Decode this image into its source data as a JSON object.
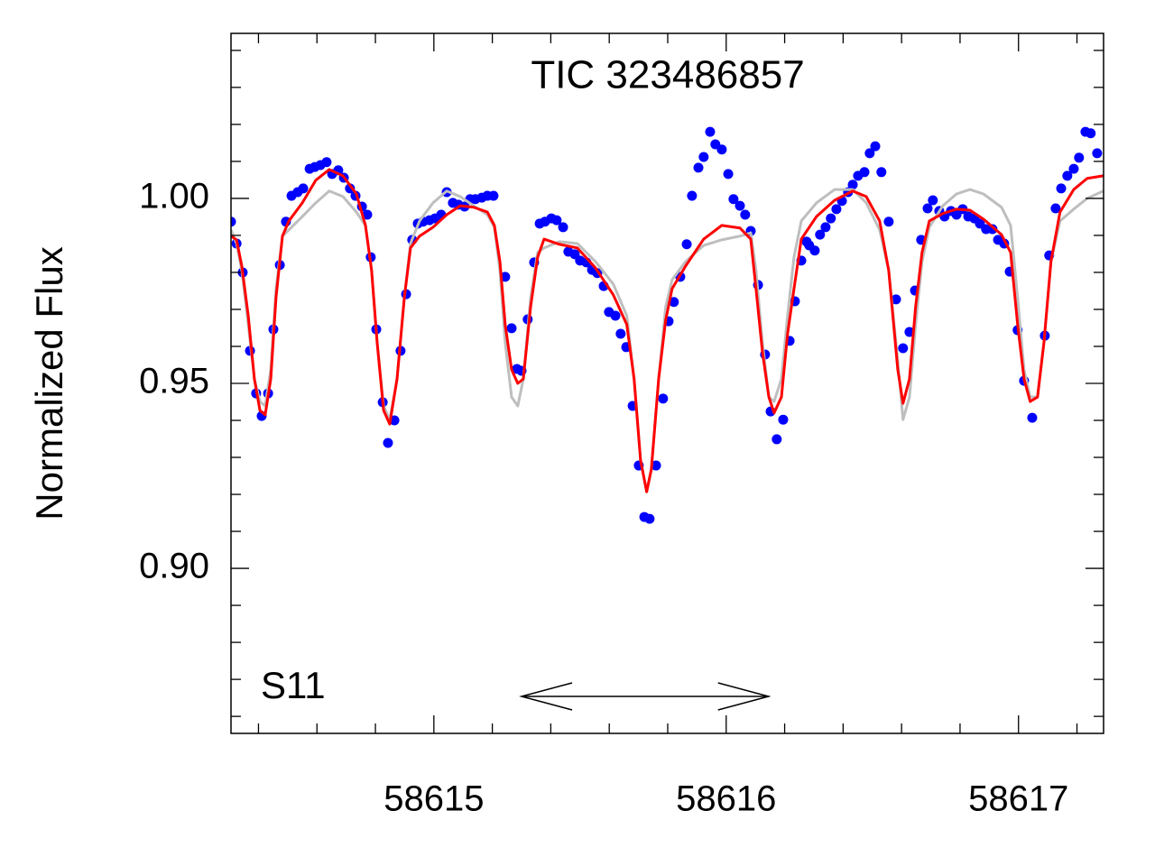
{
  "chart_data": {
    "type": "scatter",
    "title": "TIC 323486857",
    "y_label": "Normalized Flux",
    "annotation": "S11",
    "arrow": {
      "x": [
        58615.3,
        58616.145
      ],
      "y": 0.8654
    },
    "xlim": [
      58614.306,
      58617.291
    ],
    "ylim": [
      0.8554,
      1.0446
    ],
    "xticks": [
      58615,
      58616,
      58617
    ],
    "xminorticks": [
      58614.4,
      58614.6,
      58614.8,
      58615.2,
      58615.4,
      58615.6,
      58615.8,
      58616.2,
      58616.4,
      58616.6,
      58616.8,
      58617.2
    ],
    "yticks": [
      {
        "value": 0.9,
        "label": "0.90"
      },
      {
        "value": 0.95,
        "label": "0.95"
      },
      {
        "value": 1.0,
        "label": "1.00"
      }
    ],
    "yminorticks": [
      0.86,
      0.87,
      0.88,
      0.89,
      0.91,
      0.92,
      0.93,
      0.94,
      0.96,
      0.97,
      0.98,
      0.99,
      1.01,
      1.02,
      1.03,
      1.04
    ],
    "series": [
      {
        "mode": "markers",
        "color": "#0000ff",
        "x": [
          58614.306,
          58614.325,
          58614.346,
          58614.371,
          58614.392,
          58614.411,
          58614.433,
          58614.451,
          58614.473,
          58614.494,
          58614.513,
          58614.534,
          58614.553,
          58614.575,
          58614.593,
          58614.612,
          58614.633,
          58614.652,
          58614.673,
          58614.692,
          58614.713,
          58614.732,
          58614.754,
          58614.772,
          58614.784,
          58614.803,
          58614.825,
          58614.843,
          58614.865,
          58614.886,
          58614.905,
          58614.926,
          58614.945,
          58614.963,
          58614.985,
          58615.004,
          58615.025,
          58615.044,
          58615.065,
          58615.084,
          58615.105,
          58615.124,
          58615.142,
          58615.164,
          58615.183,
          58615.204,
          58615.244,
          58615.266,
          58615.284,
          58615.3,
          58615.321,
          58615.343,
          58615.362,
          58615.38,
          58615.402,
          58615.42,
          58615.442,
          58615.46,
          58615.482,
          58615.5,
          58615.522,
          58615.541,
          58615.559,
          58615.581,
          58615.599,
          58615.621,
          58615.639,
          58615.658,
          58615.68,
          58615.701,
          58615.72,
          58615.738,
          58615.76,
          58615.784,
          58615.803,
          58615.821,
          58615.843,
          58615.865,
          58615.883,
          58615.905,
          58615.923,
          58615.945,
          58615.963,
          58615.985,
          58616.007,
          58616.025,
          58616.047,
          58616.065,
          58616.084,
          58616.109,
          58616.133,
          58616.152,
          58616.173,
          58616.195,
          58616.217,
          58616.235,
          58616.257,
          58616.275,
          58616.284,
          58616.303,
          58616.321,
          58616.34,
          58616.358,
          58616.377,
          58616.396,
          58616.417,
          58616.433,
          58616.451,
          58616.473,
          58616.491,
          58616.51,
          58616.531,
          58616.556,
          58616.581,
          58616.605,
          58616.627,
          58616.646,
          58616.667,
          58616.689,
          58616.707,
          58616.729,
          58616.747,
          58616.769,
          58616.788,
          58616.809,
          58616.828,
          58616.849,
          58616.868,
          58616.889,
          58616.911,
          58616.93,
          58616.951,
          58616.97,
          58616.997,
          58617.019,
          58617.047,
          58617.09,
          58617.105,
          58617.127,
          58617.146,
          58617.167,
          58617.189,
          58617.207,
          58617.229,
          58617.247,
          58617.269
        ],
        "values": [
          0.9937,
          0.9878,
          0.98,
          0.9588,
          0.9473,
          0.9412,
          0.9473,
          0.9646,
          0.982,
          0.9937,
          1.0007,
          1.0017,
          1.0027,
          1.008,
          1.0085,
          1.009,
          1.0098,
          1.0066,
          1.0076,
          1.0056,
          1.0027,
          1.0007,
          0.9978,
          0.9956,
          0.9841,
          0.9646,
          0.9449,
          0.9339,
          0.94,
          0.9588,
          0.9741,
          0.9888,
          0.9932,
          0.9937,
          0.9941,
          0.9946,
          0.9956,
          1.0017,
          0.9988,
          0.9983,
          0.9978,
          0.9998,
          0.9998,
          1.0002,
          1.0007,
          1.0007,
          0.9788,
          0.9649,
          0.9539,
          0.9534,
          0.9673,
          0.9827,
          0.9932,
          0.9937,
          0.9946,
          0.9941,
          0.9922,
          0.9856,
          0.9849,
          0.9832,
          0.9827,
          0.9807,
          0.9798,
          0.9763,
          0.9693,
          0.9683,
          0.9634,
          0.9598,
          0.9439,
          0.9278,
          0.9139,
          0.9134,
          0.9278,
          0.9459,
          0.9668,
          0.972,
          0.9788,
          0.9876,
          1.0007,
          1.0083,
          1.0112,
          1.018,
          1.0146,
          1.0132,
          1.0066,
          0.9998,
          0.998,
          0.9956,
          0.9912,
          0.9766,
          0.9578,
          0.9424,
          0.9349,
          0.9402,
          0.9615,
          0.9722,
          0.9832,
          0.9883,
          0.9873,
          0.9859,
          0.9902,
          0.9922,
          0.9946,
          0.9971,
          0.9993,
          1.0017,
          1.0037,
          1.0061,
          1.0071,
          1.0122,
          1.0141,
          1.0071,
          0.9937,
          0.9727,
          0.9595,
          0.9639,
          0.9751,
          0.9888,
          0.9973,
          0.9995,
          0.9966,
          0.9951,
          0.9966,
          0.9956,
          0.9971,
          0.9951,
          0.9946,
          0.9932,
          0.9917,
          0.9917,
          0.9888,
          0.9878,
          0.9802,
          0.9644,
          0.9507,
          0.9407,
          0.9629,
          0.9846,
          0.9973,
          1.0027,
          1.0061,
          1.008,
          1.011,
          1.018,
          1.0176,
          1.0122
        ]
      },
      {
        "mode": "lines",
        "color": "#bebebe",
        "x": [
          58614.306,
          58614.325,
          58614.343,
          58614.365,
          58614.386,
          58614.405,
          58614.423,
          58614.442,
          58614.46,
          58614.482,
          58614.504,
          58614.55,
          58614.596,
          58614.642,
          58614.689,
          58614.735,
          58614.766,
          58614.787,
          58614.806,
          58614.828,
          58614.849,
          58614.874,
          58614.899,
          58614.92,
          58614.951,
          58614.997,
          58615.044,
          58615.09,
          58615.136,
          58615.183,
          58615.207,
          58615.226,
          58615.244,
          58615.266,
          58615.287,
          58615.306,
          58615.331,
          58615.355,
          58615.377,
          58615.429,
          58615.491,
          58615.553,
          58615.614,
          58615.66,
          58615.685,
          58615.707,
          58615.728,
          58615.744,
          58615.769,
          58615.793,
          58615.815,
          58615.861,
          58615.923,
          58615.985,
          58616.047,
          58616.084,
          58616.102,
          58616.124,
          58616.146,
          58616.164,
          58616.189,
          58616.21,
          58616.232,
          58616.257,
          58616.309,
          58616.371,
          58616.433,
          58616.479,
          58616.525,
          58616.556,
          58616.587,
          58616.605,
          58616.627,
          58616.648,
          58616.67,
          58616.695,
          58616.741,
          58616.788,
          58616.834,
          58616.88,
          58616.942,
          58616.973,
          58616.997,
          58617.019,
          58617.04,
          58617.065,
          58617.087,
          58617.111,
          58617.142,
          58617.189,
          58617.235,
          58617.29
        ],
        "values": [
          0.9915,
          0.9878,
          0.9805,
          0.9659,
          0.9512,
          0.9451,
          0.9439,
          0.9537,
          0.9756,
          0.9898,
          0.9915,
          0.9951,
          0.9988,
          1.002,
          1.0005,
          0.9963,
          0.9927,
          0.9805,
          0.961,
          0.9439,
          0.9402,
          0.9512,
          0.9732,
          0.9878,
          0.9939,
          0.9988,
          1.002,
          1.0005,
          0.998,
          0.9956,
          0.9922,
          0.9805,
          0.961,
          0.9463,
          0.9439,
          0.9512,
          0.9732,
          0.9854,
          0.9866,
          0.9883,
          0.9878,
          0.9829,
          0.9768,
          0.9683,
          0.9512,
          0.9293,
          0.9207,
          0.9268,
          0.9512,
          0.9707,
          0.978,
          0.9829,
          0.9873,
          0.9888,
          0.9898,
          0.9907,
          0.9805,
          0.961,
          0.9463,
          0.9451,
          0.9512,
          0.9683,
          0.9841,
          0.9939,
          0.9988,
          1.0024,
          1.0024,
          0.9988,
          0.9915,
          0.9805,
          0.9561,
          0.9402,
          0.9463,
          0.9659,
          0.9829,
          0.9922,
          0.998,
          1.0012,
          1.0024,
          1.0012,
          0.9976,
          0.9927,
          0.9732,
          0.9537,
          0.9463,
          0.9463,
          0.961,
          0.9829,
          0.9939,
          0.9971,
          1.0,
          1.002
        ]
      },
      {
        "mode": "lines",
        "color": "#ff0000",
        "x": [
          58614.306,
          58614.325,
          58614.343,
          58614.365,
          58614.386,
          58614.405,
          58614.423,
          58614.442,
          58614.46,
          58614.482,
          58614.504,
          58614.55,
          58614.596,
          58614.642,
          58614.689,
          58614.735,
          58614.766,
          58614.787,
          58614.806,
          58614.828,
          58614.849,
          58614.874,
          58614.899,
          58614.92,
          58614.951,
          58614.997,
          58615.044,
          58615.09,
          58615.136,
          58615.183,
          58615.207,
          58615.226,
          58615.244,
          58615.266,
          58615.287,
          58615.306,
          58615.331,
          58615.355,
          58615.377,
          58615.429,
          58615.491,
          58615.553,
          58615.614,
          58615.66,
          58615.685,
          58615.707,
          58615.728,
          58615.744,
          58615.769,
          58615.793,
          58615.815,
          58615.861,
          58615.923,
          58615.985,
          58616.047,
          58616.084,
          58616.102,
          58616.124,
          58616.146,
          58616.164,
          58616.189,
          58616.21,
          58616.232,
          58616.257,
          58616.309,
          58616.371,
          58616.433,
          58616.479,
          58616.525,
          58616.556,
          58616.587,
          58616.605,
          58616.627,
          58616.648,
          58616.67,
          58616.695,
          58616.741,
          58616.788,
          58616.834,
          58616.88,
          58616.942,
          58616.973,
          58616.997,
          58617.019,
          58617.04,
          58617.065,
          58617.087,
          58617.111,
          58617.142,
          58617.189,
          58617.235,
          58617.29
        ],
        "values": [
          0.9898,
          0.9888,
          0.9817,
          0.9683,
          0.9512,
          0.9427,
          0.9415,
          0.9512,
          0.9732,
          0.9898,
          0.9939,
          0.9988,
          1.0049,
          1.0078,
          1.0061,
          1.0012,
          0.9927,
          0.9805,
          0.961,
          0.9427,
          0.939,
          0.9512,
          0.9732,
          0.9866,
          0.9898,
          0.9922,
          0.9956,
          0.998,
          0.9976,
          0.9963,
          0.9927,
          0.9829,
          0.9659,
          0.9537,
          0.95,
          0.9512,
          0.9707,
          0.9841,
          0.989,
          0.9876,
          0.9866,
          0.9812,
          0.9739,
          0.9659,
          0.9512,
          0.9293,
          0.9207,
          0.9268,
          0.9512,
          0.9671,
          0.9756,
          0.9817,
          0.989,
          0.9927,
          0.992,
          0.989,
          0.9756,
          0.9585,
          0.9463,
          0.942,
          0.9463,
          0.9634,
          0.9756,
          0.989,
          0.9951,
          0.9995,
          1.002,
          1.0005,
          0.9939,
          0.9805,
          0.9537,
          0.9446,
          0.9512,
          0.9707,
          0.9854,
          0.9939,
          0.9959,
          0.9971,
          0.9968,
          0.9944,
          0.9902,
          0.9854,
          0.9659,
          0.9512,
          0.9451,
          0.9463,
          0.961,
          0.9829,
          0.9963,
          1.0024,
          1.0054,
          1.0061
        ]
      }
    ]
  }
}
